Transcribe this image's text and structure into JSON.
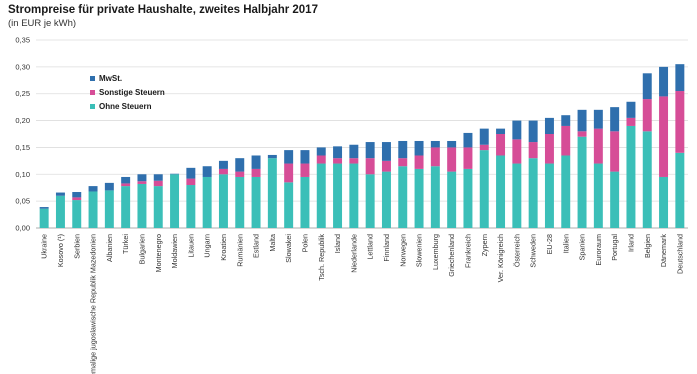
{
  "chart_data": {
    "type": "bar",
    "stacked": true,
    "title": "Strompreise für private Haushalte, zweites Halbjahr 2017",
    "subtitle": "(in EUR je kWh)",
    "xlabel": "",
    "ylabel": "",
    "ylim": [
      0,
      0.35
    ],
    "yticks": [
      "0,00",
      "0,05",
      "0,10",
      "0,15",
      "0,20",
      "0,25",
      "0,30",
      "0,35"
    ],
    "grid": true,
    "legend_position": "top-left",
    "categories": [
      "Ukraine",
      "Kosovo (¹)",
      "Serbien",
      "ehemalige jugoslawische Republik Mazedonien",
      "Albanien",
      "Türkei",
      "Bulgarien",
      "Montenegro",
      "Moldawien",
      "Litauen",
      "Ungarn",
      "Kroatien",
      "Rumänien",
      "Estland",
      "Malta",
      "Slowakei",
      "Polen",
      "Tsch. Republik",
      "Island",
      "Niederlande",
      "Lettland",
      "Finnland",
      "Norwegen",
      "Slowenien",
      "Luxemburg",
      "Griechenland",
      "Frankreich",
      "Zypern",
      "Ver. Königreich",
      "Österreich",
      "Schweden",
      "EU-28",
      "Italien",
      "Spanien",
      "Euroraum",
      "Portugal",
      "Irland",
      "Belgien",
      "Dänemark",
      "Deutschland"
    ],
    "series": [
      {
        "name": "Ohne Steuern",
        "color": "#3bbfb8",
        "values": [
          0.036,
          0.06,
          0.052,
          0.068,
          0.07,
          0.078,
          0.082,
          0.078,
          0.1,
          0.08,
          0.095,
          0.1,
          0.095,
          0.095,
          0.13,
          0.085,
          0.095,
          0.12,
          0.12,
          0.12,
          0.1,
          0.105,
          0.115,
          0.11,
          0.115,
          0.105,
          0.11,
          0.145,
          0.135,
          0.12,
          0.13,
          0.12,
          0.135,
          0.17,
          0.12,
          0.105,
          0.19,
          0.18,
          0.095,
          0.14
        ]
      },
      {
        "name": "Sonstige Steuern",
        "color": "#d64d97",
        "values": [
          0.0,
          0.0,
          0.005,
          0.0,
          0.0,
          0.005,
          0.005,
          0.01,
          0.0,
          0.012,
          0.0,
          0.01,
          0.01,
          0.015,
          0.0,
          0.035,
          0.025,
          0.015,
          0.01,
          0.01,
          0.03,
          0.02,
          0.015,
          0.025,
          0.035,
          0.045,
          0.04,
          0.01,
          0.04,
          0.045,
          0.03,
          0.055,
          0.055,
          0.01,
          0.065,
          0.075,
          0.015,
          0.06,
          0.15,
          0.115
        ]
      },
      {
        "name": "MwSt.",
        "color": "#2f6fad",
        "values": [
          0.003,
          0.006,
          0.01,
          0.01,
          0.014,
          0.012,
          0.013,
          0.012,
          0.001,
          0.02,
          0.02,
          0.015,
          0.025,
          0.025,
          0.006,
          0.025,
          0.025,
          0.015,
          0.022,
          0.025,
          0.03,
          0.035,
          0.032,
          0.027,
          0.012,
          0.012,
          0.027,
          0.03,
          0.01,
          0.035,
          0.04,
          0.03,
          0.02,
          0.04,
          0.035,
          0.045,
          0.03,
          0.048,
          0.055,
          0.05
        ]
      }
    ],
    "legend_order": [
      "MwSt.",
      "Sonstige Steuern",
      "Ohne Steuern"
    ]
  }
}
